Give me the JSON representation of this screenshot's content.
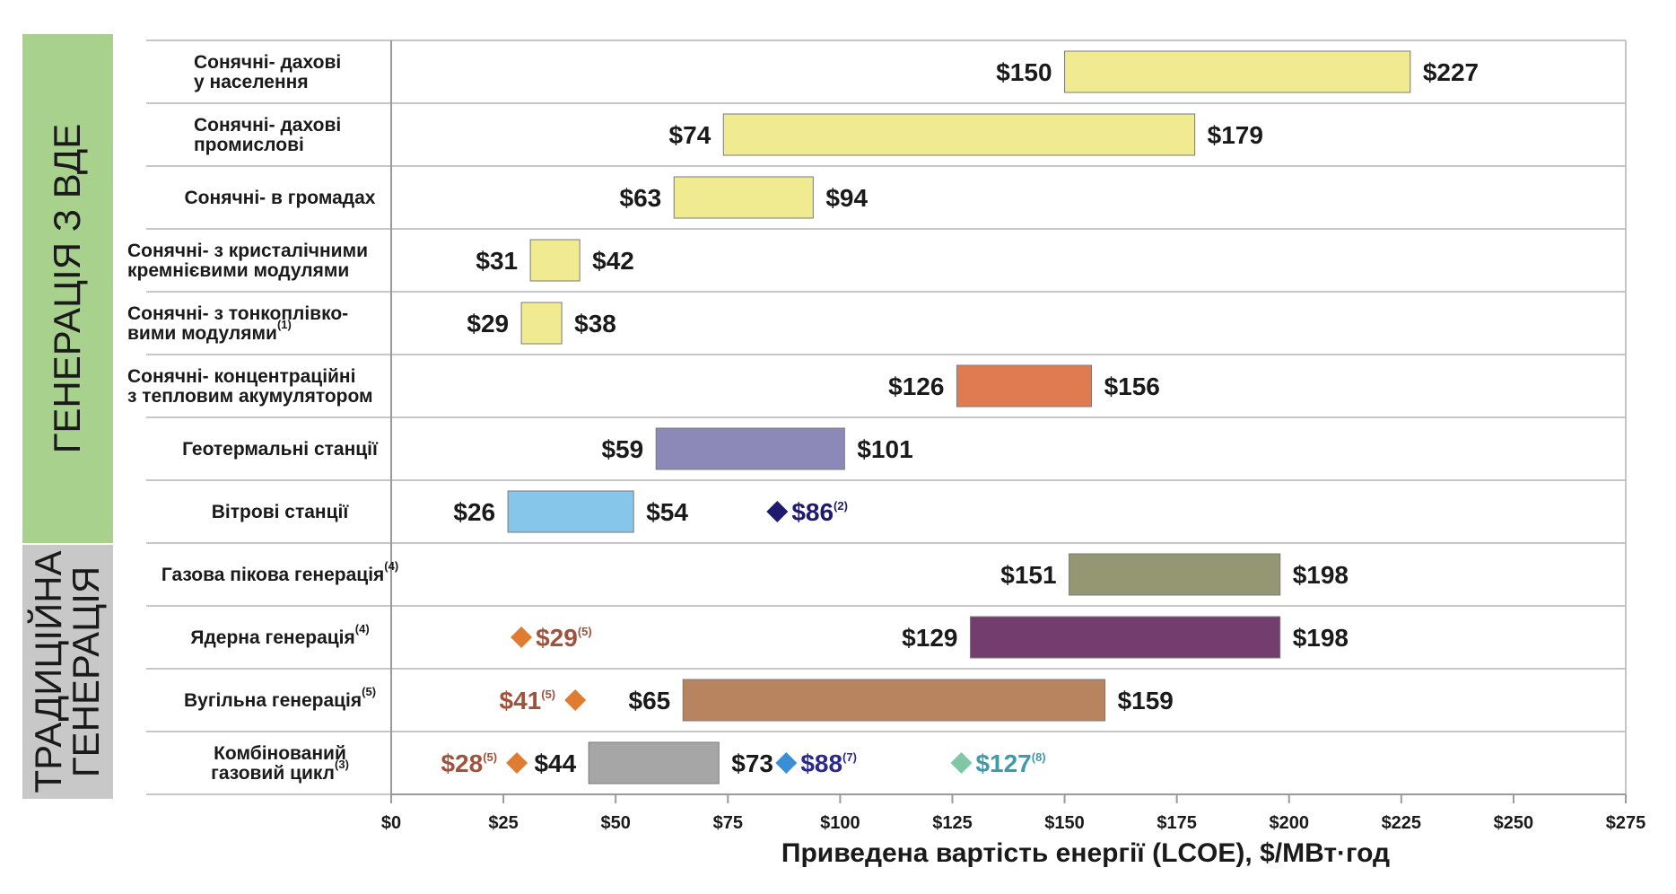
{
  "chart_data": {
    "type": "bar",
    "orientation": "horizontal-range",
    "xlabel": "Приведена вартість енергії  (LCOE), $/МВт·год",
    "xlim": [
      0,
      275
    ],
    "x_ticks": [
      {
        "value": 0,
        "label": "$0"
      },
      {
        "value": 25,
        "label": "$25"
      },
      {
        "value": 50,
        "label": "$50"
      },
      {
        "value": 75,
        "label": "$75"
      },
      {
        "value": 100,
        "label": "$100"
      },
      {
        "value": 125,
        "label": "$125"
      },
      {
        "value": 150,
        "label": "$150"
      },
      {
        "value": 175,
        "label": "$175"
      },
      {
        "value": 200,
        "label": "$200"
      },
      {
        "value": 225,
        "label": "$225"
      },
      {
        "value": 250,
        "label": "$250"
      },
      {
        "value": 275,
        "label": "$275"
      }
    ],
    "grid": true,
    "groups": [
      {
        "label": "ГЕНЕРАЦІЯ З ВДЕ",
        "color": "#a9d18e",
        "rows": [
          0,
          7
        ]
      },
      {
        "label_lines": [
          "ТРАДИЦІЙНА",
          "ГЕНЕРАЦІЯ"
        ],
        "color": "#c8c8c8",
        "rows": [
          8,
          11
        ]
      }
    ],
    "rows": [
      {
        "label_lines": [
          {
            "text": "Сонячні- дахові",
            "note": ""
          },
          {
            "text": "у населення",
            "note": ""
          }
        ],
        "align": "left",
        "low": 150,
        "high": 227,
        "low_label": "$150",
        "high_label": "$227",
        "color": "#f0eb91",
        "markers": []
      },
      {
        "label_lines": [
          {
            "text": "Сонячні- дахові",
            "note": ""
          },
          {
            "text": "промислові",
            "note": ""
          }
        ],
        "align": "left",
        "low": 74,
        "high": 179,
        "low_label": "$74",
        "high_label": "$179",
        "color": "#f0eb91",
        "markers": []
      },
      {
        "label_lines": [
          {
            "text": "Сонячні- в громадах",
            "note": ""
          }
        ],
        "align": "center",
        "low": 63,
        "high": 94,
        "low_label": "$63",
        "high_label": "$94",
        "color": "#f0eb91",
        "markers": []
      },
      {
        "label_lines": [
          {
            "text": "Сонячні- з кристалічними",
            "note": ""
          },
          {
            "text": "кремнієвими  модулями",
            "note": ""
          }
        ],
        "align": "left",
        "low": 31,
        "high": 42,
        "low_label": "$31",
        "high_label": "$42",
        "color": "#f0eb91",
        "markers": []
      },
      {
        "label_lines": [
          {
            "text": "Сонячні- з тонкоплівко-",
            "note": ""
          },
          {
            "text": "вими  модулями",
            "note": "(1)"
          }
        ],
        "align": "left",
        "low": 29,
        "high": 38,
        "low_label": "$29",
        "high_label": "$38",
        "color": "#f0eb91",
        "markers": []
      },
      {
        "label_lines": [
          {
            "text": "Сонячні- концентраційні",
            "note": ""
          },
          {
            "text": "з тепловим акумулятором",
            "note": ""
          }
        ],
        "align": "left",
        "low": 126,
        "high": 156,
        "low_label": "$126",
        "high_label": "$156",
        "color": "#e07b50",
        "markers": []
      },
      {
        "label_lines": [
          {
            "text": "Геотермальні станції",
            "note": ""
          }
        ],
        "align": "center",
        "low": 59,
        "high": 101,
        "low_label": "$59",
        "high_label": "$101",
        "color": "#8c88b8",
        "markers": []
      },
      {
        "label_lines": [
          {
            "text": "Вітрові станції",
            "note": ""
          }
        ],
        "align": "center",
        "low": 26,
        "high": 54,
        "low_label": "$26",
        "high_label": "$54",
        "color": "#86c6ea",
        "markers": [
          {
            "value": 86,
            "label": "$86",
            "note": "(2)",
            "color": "#1f1a6e",
            "label_side": "right"
          }
        ]
      },
      {
        "label_lines": [
          {
            "text": "Газова пікова  генерація",
            "note": "(4)"
          }
        ],
        "align": "center",
        "low": 151,
        "high": 198,
        "low_label": "$151",
        "high_label": "$198",
        "color": "#959772",
        "markers": []
      },
      {
        "label_lines": [
          {
            "text": "Ядерна  генерація",
            "note": "(4)"
          }
        ],
        "align": "center",
        "low": 129,
        "high": 198,
        "low_label": "$129",
        "high_label": "$198",
        "color": "#733d6e",
        "markers": [
          {
            "value": 29,
            "label": "$29",
            "note": "(5)",
            "color": "#e07b32",
            "text_color": "#a0523c",
            "label_side": "right"
          }
        ]
      },
      {
        "label_lines": [
          {
            "text": "Вугільна  генерація",
            "note": "(5)"
          }
        ],
        "align": "center",
        "low": 65,
        "high": 159,
        "low_label": "$65",
        "high_label": "$159",
        "color": "#b8845f",
        "markers": [
          {
            "value": 41,
            "label": "$41",
            "note": "(5)",
            "color": "#e07b32",
            "text_color": "#a0523c",
            "label_side": "left"
          }
        ]
      },
      {
        "label_lines": [
          {
            "text": "Комбінований",
            "note": ""
          },
          {
            "text": "газовий цикл",
            "note": "(3)"
          }
        ],
        "align": "center",
        "low": 44,
        "high": 73,
        "low_label": "$44",
        "high_label": "$73",
        "color": "#a6a6a6",
        "markers": [
          {
            "value": 28,
            "label": "$28",
            "note": "(5)",
            "color": "#e07b32",
            "text_color": "#a0523c",
            "label_side": "left"
          },
          {
            "value": 88,
            "label": "$88",
            "note": "(7)",
            "color": "#3a8fd4",
            "text_color": "#2b2a8a",
            "label_side": "right"
          },
          {
            "value": 127,
            "label": "$127",
            "note": "(8)",
            "color": "#7fc7a6",
            "text_color": "#3e9ba8",
            "label_side": "right"
          }
        ]
      }
    ]
  }
}
